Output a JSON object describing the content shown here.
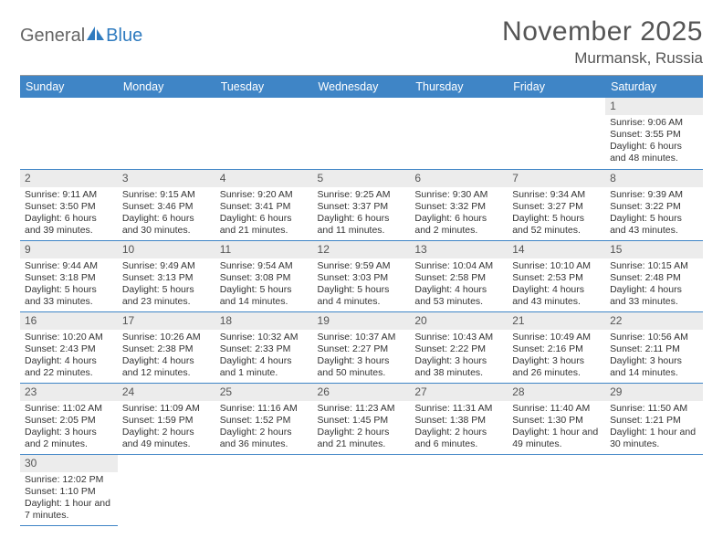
{
  "brand": {
    "part1": "General",
    "part2": "Blue"
  },
  "title": "November 2025",
  "location": "Murmansk, Russia",
  "colors": {
    "header_bg": "#3f85c6",
    "daynum_bg": "#ececec",
    "rule": "#3f85c6"
  },
  "weekdays": [
    "Sunday",
    "Monday",
    "Tuesday",
    "Wednesday",
    "Thursday",
    "Friday",
    "Saturday"
  ],
  "grid": [
    [
      null,
      null,
      null,
      null,
      null,
      null,
      {
        "n": "1",
        "sr": "Sunrise: 9:06 AM",
        "ss": "Sunset: 3:55 PM",
        "dl": "Daylight: 6 hours and 48 minutes."
      }
    ],
    [
      {
        "n": "2",
        "sr": "Sunrise: 9:11 AM",
        "ss": "Sunset: 3:50 PM",
        "dl": "Daylight: 6 hours and 39 minutes."
      },
      {
        "n": "3",
        "sr": "Sunrise: 9:15 AM",
        "ss": "Sunset: 3:46 PM",
        "dl": "Daylight: 6 hours and 30 minutes."
      },
      {
        "n": "4",
        "sr": "Sunrise: 9:20 AM",
        "ss": "Sunset: 3:41 PM",
        "dl": "Daylight: 6 hours and 21 minutes."
      },
      {
        "n": "5",
        "sr": "Sunrise: 9:25 AM",
        "ss": "Sunset: 3:37 PM",
        "dl": "Daylight: 6 hours and 11 minutes."
      },
      {
        "n": "6",
        "sr": "Sunrise: 9:30 AM",
        "ss": "Sunset: 3:32 PM",
        "dl": "Daylight: 6 hours and 2 minutes."
      },
      {
        "n": "7",
        "sr": "Sunrise: 9:34 AM",
        "ss": "Sunset: 3:27 PM",
        "dl": "Daylight: 5 hours and 52 minutes."
      },
      {
        "n": "8",
        "sr": "Sunrise: 9:39 AM",
        "ss": "Sunset: 3:22 PM",
        "dl": "Daylight: 5 hours and 43 minutes."
      }
    ],
    [
      {
        "n": "9",
        "sr": "Sunrise: 9:44 AM",
        "ss": "Sunset: 3:18 PM",
        "dl": "Daylight: 5 hours and 33 minutes."
      },
      {
        "n": "10",
        "sr": "Sunrise: 9:49 AM",
        "ss": "Sunset: 3:13 PM",
        "dl": "Daylight: 5 hours and 23 minutes."
      },
      {
        "n": "11",
        "sr": "Sunrise: 9:54 AM",
        "ss": "Sunset: 3:08 PM",
        "dl": "Daylight: 5 hours and 14 minutes."
      },
      {
        "n": "12",
        "sr": "Sunrise: 9:59 AM",
        "ss": "Sunset: 3:03 PM",
        "dl": "Daylight: 5 hours and 4 minutes."
      },
      {
        "n": "13",
        "sr": "Sunrise: 10:04 AM",
        "ss": "Sunset: 2:58 PM",
        "dl": "Daylight: 4 hours and 53 minutes."
      },
      {
        "n": "14",
        "sr": "Sunrise: 10:10 AM",
        "ss": "Sunset: 2:53 PM",
        "dl": "Daylight: 4 hours and 43 minutes."
      },
      {
        "n": "15",
        "sr": "Sunrise: 10:15 AM",
        "ss": "Sunset: 2:48 PM",
        "dl": "Daylight: 4 hours and 33 minutes."
      }
    ],
    [
      {
        "n": "16",
        "sr": "Sunrise: 10:20 AM",
        "ss": "Sunset: 2:43 PM",
        "dl": "Daylight: 4 hours and 22 minutes."
      },
      {
        "n": "17",
        "sr": "Sunrise: 10:26 AM",
        "ss": "Sunset: 2:38 PM",
        "dl": "Daylight: 4 hours and 12 minutes."
      },
      {
        "n": "18",
        "sr": "Sunrise: 10:32 AM",
        "ss": "Sunset: 2:33 PM",
        "dl": "Daylight: 4 hours and 1 minute."
      },
      {
        "n": "19",
        "sr": "Sunrise: 10:37 AM",
        "ss": "Sunset: 2:27 PM",
        "dl": "Daylight: 3 hours and 50 minutes."
      },
      {
        "n": "20",
        "sr": "Sunrise: 10:43 AM",
        "ss": "Sunset: 2:22 PM",
        "dl": "Daylight: 3 hours and 38 minutes."
      },
      {
        "n": "21",
        "sr": "Sunrise: 10:49 AM",
        "ss": "Sunset: 2:16 PM",
        "dl": "Daylight: 3 hours and 26 minutes."
      },
      {
        "n": "22",
        "sr": "Sunrise: 10:56 AM",
        "ss": "Sunset: 2:11 PM",
        "dl": "Daylight: 3 hours and 14 minutes."
      }
    ],
    [
      {
        "n": "23",
        "sr": "Sunrise: 11:02 AM",
        "ss": "Sunset: 2:05 PM",
        "dl": "Daylight: 3 hours and 2 minutes."
      },
      {
        "n": "24",
        "sr": "Sunrise: 11:09 AM",
        "ss": "Sunset: 1:59 PM",
        "dl": "Daylight: 2 hours and 49 minutes."
      },
      {
        "n": "25",
        "sr": "Sunrise: 11:16 AM",
        "ss": "Sunset: 1:52 PM",
        "dl": "Daylight: 2 hours and 36 minutes."
      },
      {
        "n": "26",
        "sr": "Sunrise: 11:23 AM",
        "ss": "Sunset: 1:45 PM",
        "dl": "Daylight: 2 hours and 21 minutes."
      },
      {
        "n": "27",
        "sr": "Sunrise: 11:31 AM",
        "ss": "Sunset: 1:38 PM",
        "dl": "Daylight: 2 hours and 6 minutes."
      },
      {
        "n": "28",
        "sr": "Sunrise: 11:40 AM",
        "ss": "Sunset: 1:30 PM",
        "dl": "Daylight: 1 hour and 49 minutes."
      },
      {
        "n": "29",
        "sr": "Sunrise: 11:50 AM",
        "ss": "Sunset: 1:21 PM",
        "dl": "Daylight: 1 hour and 30 minutes."
      }
    ],
    [
      {
        "n": "30",
        "sr": "Sunrise: 12:02 PM",
        "ss": "Sunset: 1:10 PM",
        "dl": "Daylight: 1 hour and 7 minutes."
      },
      null,
      null,
      null,
      null,
      null,
      null
    ]
  ]
}
